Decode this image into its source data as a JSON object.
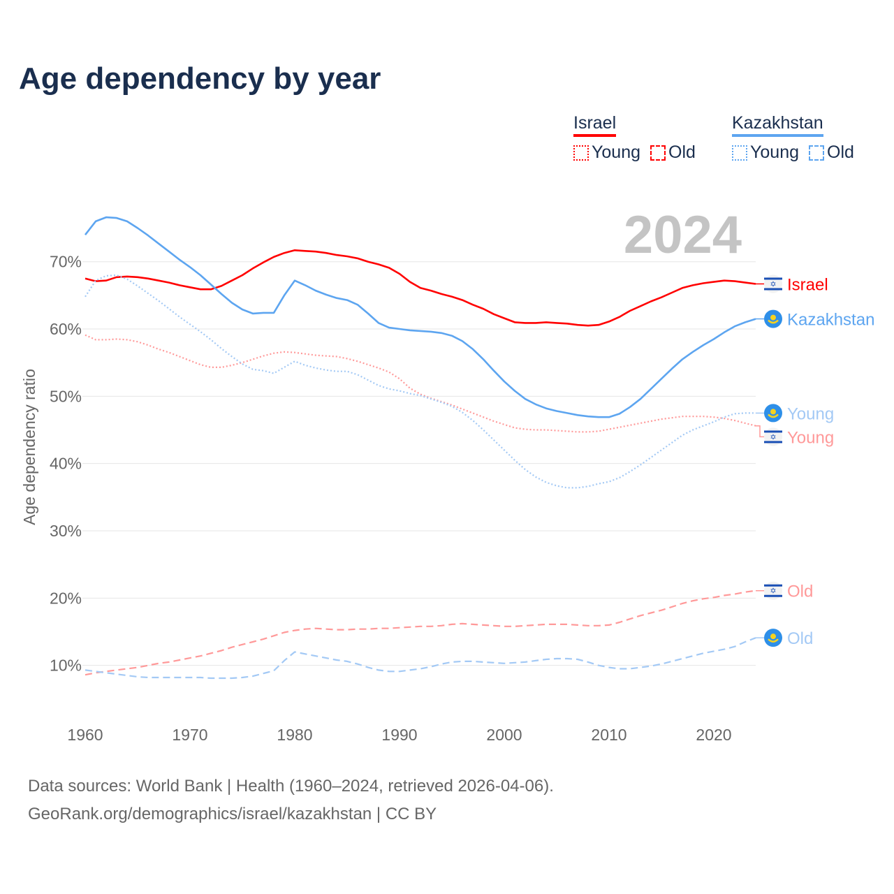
{
  "title": "Age dependency by year",
  "year_watermark": "2024",
  "legend": [
    {
      "country": "Israel",
      "color": "#ff0000",
      "young_label": "Young",
      "old_label": "Old"
    },
    {
      "country": "Kazakhstan",
      "color": "#5da5f0",
      "young_label": "Young",
      "old_label": "Old"
    }
  ],
  "sources": {
    "line1": "Data sources: World Bank | Health (1960–2024, retrieved 2026-04-06).",
    "line2": "GeoRank.org/demographics/israel/kazakhstan | CC BY"
  },
  "chart_data": {
    "type": "line",
    "title": "Age dependency by year",
    "xlabel": "",
    "ylabel": "Age dependency ratio",
    "xlim": [
      1960,
      2024
    ],
    "ylim": [
      0,
      80
    ],
    "x_ticks": [
      1960,
      1970,
      1980,
      1990,
      2000,
      2010,
      2020
    ],
    "x_tick_labels": [
      "1960",
      "1970",
      "1980",
      "1990",
      "2000",
      "2010",
      "2020"
    ],
    "y_ticks": [
      10,
      20,
      30,
      40,
      50,
      60,
      70
    ],
    "y_tick_labels": [
      "10%",
      "20%",
      "30%",
      "40%",
      "50%",
      "60%",
      "70%"
    ],
    "grid": true,
    "legend_placement": "top-right",
    "x_start": 1960,
    "series": [
      {
        "name": "Israel",
        "label": "Israel",
        "flag": "israel-flag-icon",
        "color": "#ff0000",
        "style": "solid",
        "values": [
          67.5,
          67.1,
          67.2,
          67.7,
          67.8,
          67.7,
          67.5,
          67.2,
          66.9,
          66.5,
          66.2,
          65.9,
          65.9,
          66.4,
          67.2,
          68.0,
          69.0,
          69.9,
          70.7,
          71.3,
          71.7,
          71.6,
          71.5,
          71.3,
          71.0,
          70.8,
          70.5,
          70.0,
          69.6,
          69.1,
          68.2,
          67.0,
          66.1,
          65.7,
          65.2,
          64.8,
          64.3,
          63.6,
          63.0,
          62.2,
          61.6,
          61.0,
          60.9,
          60.9,
          61.0,
          60.9,
          60.8,
          60.6,
          60.5,
          60.6,
          61.1,
          61.8,
          62.7,
          63.4,
          64.1,
          64.7,
          65.4,
          66.1,
          66.5,
          66.8,
          67.0,
          67.2,
          67.1,
          66.9,
          66.7
        ]
      },
      {
        "name": "Kazakhstan",
        "label": "Kazakhstan",
        "flag": "kazakhstan-flag-icon",
        "color": "#5da5f0",
        "style": "solid",
        "values": [
          74.0,
          76.0,
          76.6,
          76.5,
          76.0,
          75.0,
          73.9,
          72.7,
          71.5,
          70.3,
          69.2,
          68.0,
          66.6,
          65.2,
          63.9,
          62.9,
          62.3,
          62.4,
          62.4,
          65.0,
          67.2,
          66.5,
          65.7,
          65.1,
          64.6,
          64.3,
          63.6,
          62.3,
          60.9,
          60.2,
          60.0,
          59.8,
          59.7,
          59.6,
          59.4,
          59.0,
          58.2,
          57.0,
          55.5,
          53.8,
          52.2,
          50.8,
          49.6,
          48.8,
          48.2,
          47.8,
          47.5,
          47.2,
          47.0,
          46.9,
          46.9,
          47.4,
          48.4,
          49.6,
          51.1,
          52.6,
          54.1,
          55.5,
          56.6,
          57.6,
          58.5,
          59.5,
          60.4,
          61.0,
          61.5
        ]
      },
      {
        "name": "Israel Young",
        "label": "Young",
        "flag": "israel-flag-icon",
        "color": "#ff9999",
        "style": "dotted",
        "values": [
          59.1,
          58.4,
          58.4,
          58.5,
          58.4,
          58.1,
          57.6,
          57.0,
          56.5,
          55.9,
          55.3,
          54.7,
          54.3,
          54.3,
          54.6,
          55.0,
          55.5,
          56.0,
          56.4,
          56.6,
          56.5,
          56.3,
          56.1,
          56.0,
          55.9,
          55.6,
          55.2,
          54.7,
          54.2,
          53.6,
          52.6,
          51.2,
          50.3,
          49.7,
          49.2,
          48.7,
          48.1,
          47.5,
          46.9,
          46.3,
          45.8,
          45.3,
          45.1,
          45.0,
          45.0,
          44.9,
          44.8,
          44.7,
          44.7,
          44.8,
          45.1,
          45.4,
          45.7,
          46.0,
          46.3,
          46.6,
          46.8,
          47.0,
          47.0,
          47.0,
          46.9,
          46.7,
          46.4,
          46.0,
          45.6
        ]
      },
      {
        "name": "Kazakhstan Young",
        "label": "Young",
        "flag": "kazakhstan-flag-icon",
        "color": "#a3c9f5",
        "style": "dotted",
        "values": [
          64.8,
          67.2,
          67.9,
          68.0,
          67.4,
          66.4,
          65.3,
          64.2,
          63.0,
          61.8,
          60.7,
          59.6,
          58.4,
          57.1,
          55.9,
          54.8,
          54.0,
          53.8,
          53.4,
          54.3,
          55.2,
          54.6,
          54.2,
          53.9,
          53.7,
          53.7,
          53.2,
          52.4,
          51.6,
          51.1,
          50.8,
          50.4,
          50.1,
          49.6,
          49.1,
          48.5,
          47.6,
          46.4,
          45.0,
          43.5,
          42.0,
          40.5,
          39.1,
          38.0,
          37.2,
          36.7,
          36.4,
          36.4,
          36.6,
          37.0,
          37.3,
          37.9,
          38.8,
          39.8,
          40.9,
          42.0,
          43.1,
          44.2,
          45.0,
          45.6,
          46.2,
          46.9,
          47.4,
          47.5,
          47.5
        ]
      },
      {
        "name": "Israel Old",
        "label": "Old",
        "flag": "israel-flag-icon",
        "color": "#ff9999",
        "style": "dashed",
        "values": [
          8.6,
          8.9,
          9.1,
          9.3,
          9.5,
          9.7,
          10.0,
          10.3,
          10.5,
          10.8,
          11.1,
          11.4,
          11.8,
          12.2,
          12.7,
          13.1,
          13.5,
          13.9,
          14.4,
          14.9,
          15.2,
          15.4,
          15.5,
          15.4,
          15.3,
          15.3,
          15.4,
          15.4,
          15.5,
          15.5,
          15.6,
          15.7,
          15.8,
          15.8,
          15.9,
          16.1,
          16.2,
          16.1,
          16.0,
          15.9,
          15.8,
          15.8,
          15.9,
          16.0,
          16.1,
          16.1,
          16.1,
          16.0,
          15.9,
          15.9,
          16.0,
          16.4,
          16.9,
          17.4,
          17.8,
          18.2,
          18.7,
          19.2,
          19.6,
          19.9,
          20.1,
          20.4,
          20.6,
          20.9,
          21.1
        ]
      },
      {
        "name": "Kazakhstan Old",
        "label": "Old",
        "flag": "kazakhstan-flag-icon",
        "color": "#a3c9f5",
        "style": "dashed",
        "values": [
          9.3,
          9.1,
          8.9,
          8.7,
          8.5,
          8.3,
          8.2,
          8.2,
          8.2,
          8.2,
          8.2,
          8.2,
          8.1,
          8.1,
          8.1,
          8.2,
          8.4,
          8.8,
          9.2,
          10.7,
          12.0,
          11.7,
          11.4,
          11.1,
          10.8,
          10.6,
          10.2,
          9.7,
          9.3,
          9.1,
          9.1,
          9.3,
          9.5,
          9.8,
          10.2,
          10.5,
          10.6,
          10.6,
          10.5,
          10.4,
          10.3,
          10.4,
          10.5,
          10.7,
          10.9,
          11.0,
          11.0,
          10.9,
          10.5,
          10.0,
          9.7,
          9.5,
          9.5,
          9.7,
          9.9,
          10.2,
          10.6,
          11.0,
          11.4,
          11.8,
          12.1,
          12.4,
          12.8,
          13.5,
          14.1
        ]
      }
    ]
  }
}
